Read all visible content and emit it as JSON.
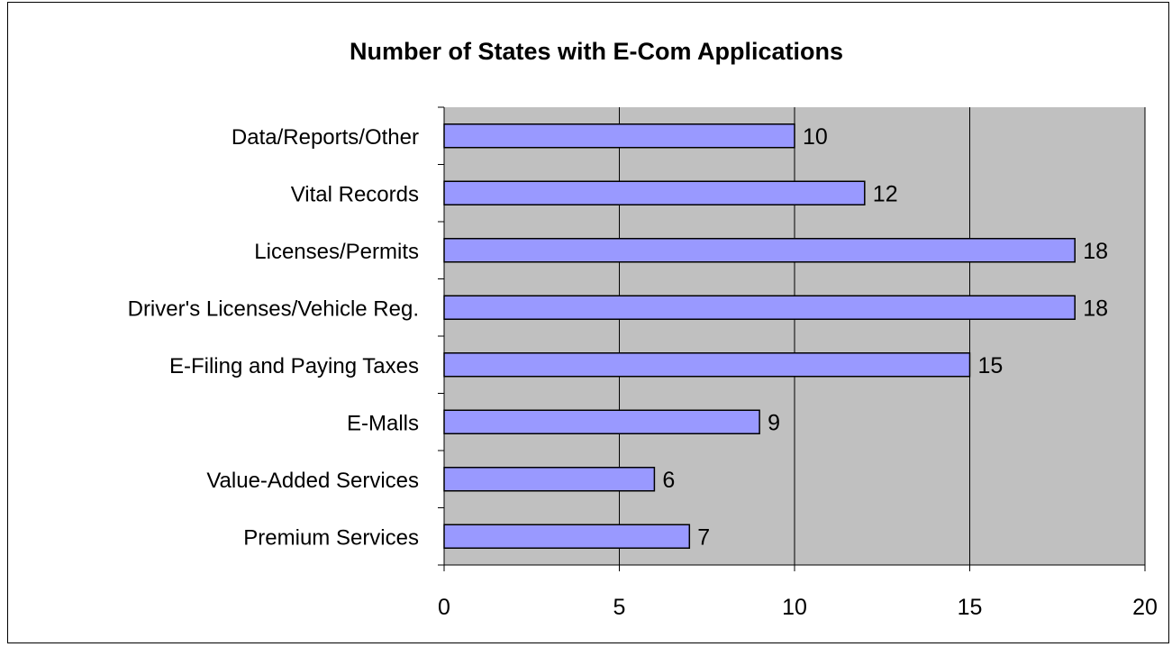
{
  "chart_data": {
    "type": "bar",
    "orientation": "horizontal",
    "title": "Number of States with E-Com Applications",
    "xlabel": "",
    "ylabel": "",
    "categories": [
      "Data/Reports/Other",
      "Vital Records",
      "Licenses/Permits",
      "Driver's Licenses/Vehicle Reg.",
      "E-Filing and Paying Taxes",
      "E-Malls",
      "Value-Added Services",
      "Premium Services"
    ],
    "values": [
      10,
      12,
      18,
      18,
      15,
      9,
      6,
      7
    ],
    "data_labels": [
      "10",
      "12",
      "18",
      "18",
      "15",
      "9",
      "6",
      "7"
    ],
    "xlim": [
      0,
      20
    ],
    "x_ticks": [
      0,
      5,
      10,
      15,
      20
    ],
    "x_tick_labels": [
      "0",
      "5",
      "10",
      "15",
      "20"
    ],
    "grid": "vertical",
    "legend": "none",
    "colors": {
      "bar_fill": "#9999ff",
      "bar_stroke": "#000000",
      "plot_background": "#c0c0c0",
      "gridline": "#000000"
    }
  }
}
